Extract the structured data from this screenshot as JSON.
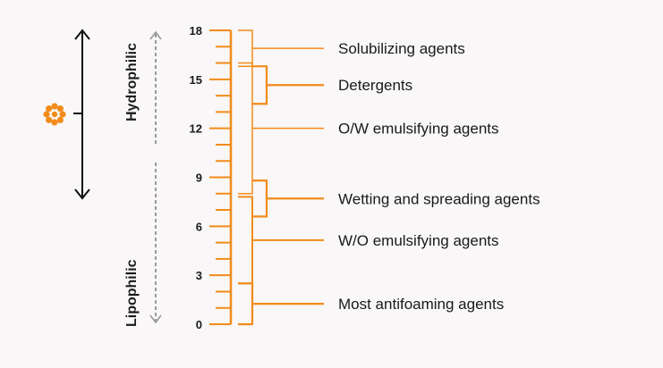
{
  "colors": {
    "orange": "#f28b1a",
    "black": "#111111",
    "gray": "#9a9a9a",
    "text": "#1a1a1a",
    "background": "#f9f7f7"
  },
  "labels": {
    "hydrophilic": "Hydrophilic",
    "lipophilic": "Lipophilic"
  },
  "scale": {
    "min": 0,
    "max": 18,
    "major_ticks": [
      "0",
      "3",
      "6",
      "9",
      "12",
      "15",
      "18"
    ]
  },
  "categories": [
    {
      "name": "Solubilizing agents",
      "range": [
        15.8,
        18
      ]
    },
    {
      "name": "Detergents",
      "range": [
        13.5,
        15.8
      ]
    },
    {
      "name": "O/W emulsifying agents",
      "range": [
        8,
        16
      ]
    },
    {
      "name": "Wetting and spreading agents",
      "range": [
        6.6,
        8.8
      ]
    },
    {
      "name": "W/O emulsifying agents",
      "range": [
        2.5,
        7.8
      ]
    },
    {
      "name": "Most antifoaming agents",
      "range": [
        0,
        2.5
      ]
    }
  ],
  "icons": {
    "molecule": "surfactant-molecule-icon"
  }
}
